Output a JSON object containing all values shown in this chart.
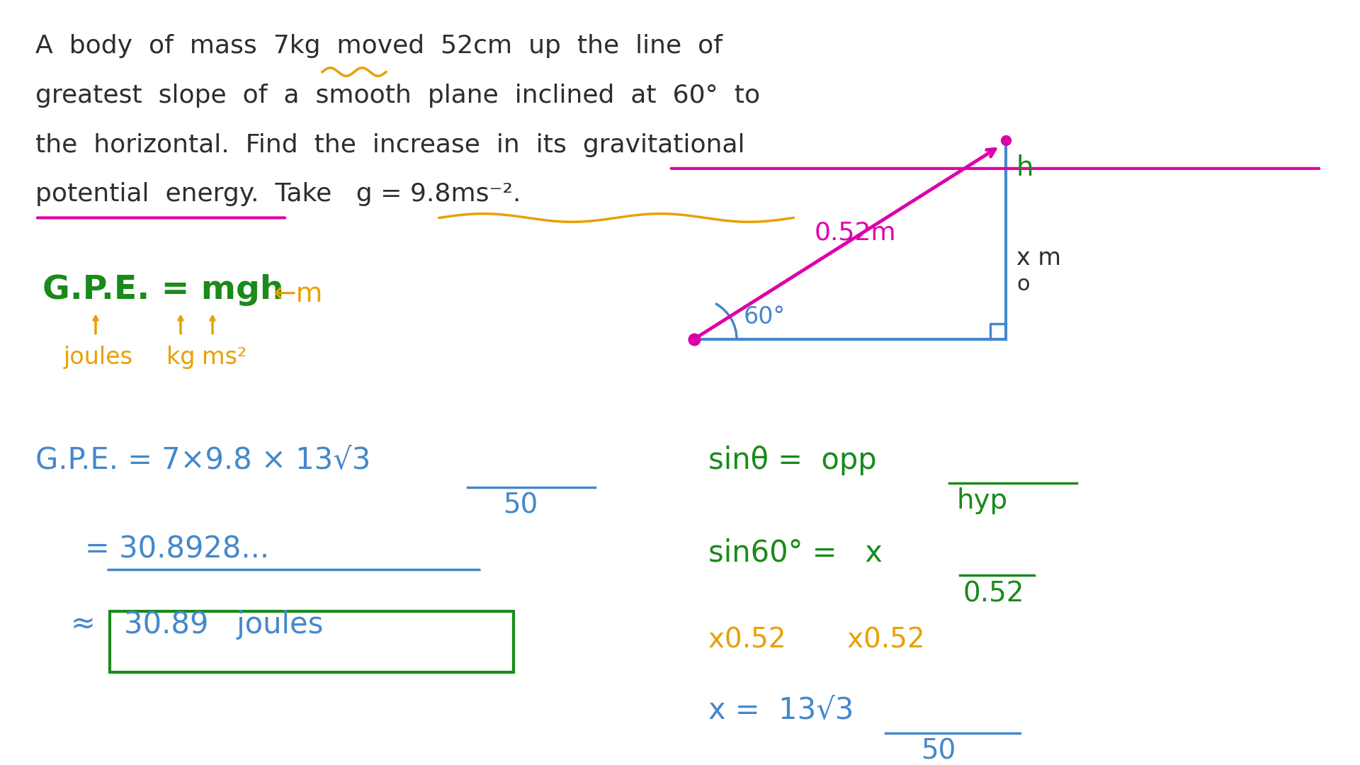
{
  "bg_color": "#ffffff",
  "text_dark": "#2d2d2d",
  "text_green": "#1a8a1a",
  "text_orange": "#e8a000",
  "text_blue": "#4488cc",
  "text_magenta": "#dd00aa",
  "underline_magenta": "#dd00aa",
  "underline_orange": "#e8a000",
  "triangle_blue": "#4488cc",
  "hyp_magenta": "#dd00aa",
  "box_green": "#1a8a1a",
  "title_line1": "A  body  of  mass  7kg  moved  52cm  up  the  line  of",
  "title_line2": "greatest  slope  of  a  smooth  plane  inclined  at  60°  to",
  "title_line3": "the  horizontal.  Find  the  increase  in  its  gravitational",
  "title_line4": "potential  energy.  Take   g = 9.8ms⁻².",
  "gpe_formula": "G.P.E. = mgh",
  "arrow_m": "←m",
  "joules_label": "joules",
  "kg_label": "kg",
  "ms2_label": "ms²",
  "calc_line1": "G.P.E. = 7×9.8 × 13√3",
  "calc_line1b": "50",
  "calc_line2": "= 30.8928...",
  "calc_line3": "≈ 30.89   joules",
  "sin_line1": "sinθ =  opp",
  "sin_line1b": "hyp",
  "sin_line2": "sin60° =   x",
  "sin_line2b": "0.52",
  "sin_line3": "x0.52      x0.52",
  "sin_line4": "x = 13√3",
  "sin_line4b": "50"
}
